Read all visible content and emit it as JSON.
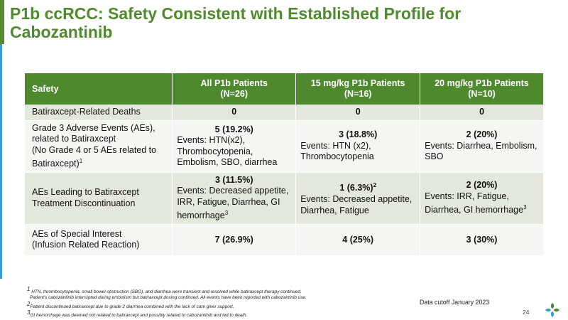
{
  "title": "P1b ccRCC: Safety Consistent with Established Profile for Cabozantinib",
  "colors": {
    "brand_green": "#4e8a2d",
    "accent_blue": "#3a9bd0",
    "row_shade": "#e3e8dc",
    "row_plain": "#f4f6f1"
  },
  "table": {
    "headers": {
      "col0": "Safety",
      "col1_line1": "All P1b Patients",
      "col1_line2": "(N=26)",
      "col2_line1": "15 mg/kg P1b Patients",
      "col2_line2": "(N=16)",
      "col3_line1": "20 mg/kg P1b Patients",
      "col3_line2": "(N=10)"
    },
    "rows": [
      {
        "label": "Batiraxcept-Related Deaths",
        "c1": "0",
        "c2": "0",
        "c3": "0"
      },
      {
        "label_l1": "Grade 3 Adverse Events (AEs),",
        "label_l2": "related to Batiraxcept",
        "label_l3": "(No Grade 4 or 5 AEs related to",
        "label_l4": "Batiraxcept)",
        "label_sup": "1",
        "c1_value": "5 (19.2%)",
        "c1_events": "Events: HTN(x2), Thrombocytopenia, Embolism, SBO, diarrhea",
        "c2_value": "3 (18.8%)",
        "c2_events": "Events: HTN (x2), Thrombocytopenia",
        "c3_value": "2 (20%)",
        "c3_events": "Events: Diarrhea, Embolism, SBO"
      },
      {
        "label_l1": "AEs Leading to Batiraxcept",
        "label_l2": "Treatment Discontinuation",
        "c1_value": "3 (11.5%)",
        "c1_events": "Events: Decreased appetite, IRR, Fatigue, Diarrhea, GI hemorrhage",
        "c1_sup": "3",
        "c2_value": "1 (6.3%)",
        "c2_value_sup": "2",
        "c2_events": "Events: Decreased appetite, Diarrhea, Fatigue",
        "c3_value": "2 (20%)",
        "c3_events": "Events: IRR, Fatigue, Diarrhea, GI hemorrhage",
        "c3_sup": "3"
      },
      {
        "label_l1": "AEs of Special Interest",
        "label_l2": "(Infusion Related Reaction)",
        "c1": "7 (26.9%)",
        "c2": "4 (25%)",
        "c3": "3 (30%)"
      }
    ]
  },
  "footnotes": {
    "f1_sup": "1",
    "f1_l1": "HTN, thrombocytopenia, small bowel obstruction (SBO), and diarrhea were transient and resolved while batiraxcept therapy continued.",
    "f1_l2": "Patient's cabozantinib interrupted during embolism but batiraxcept dosing continued. All events have been reported with cabozantinib use.",
    "f2_sup": "2",
    "f2": "Patient discontinued batiraxcept due to grade 2 diarrhea combined with the lack of care giver support.",
    "f3_sup": "3",
    "f3": "GI hemorrhage was deemed not related to batiraxcept and possibly related to cabozantinib and led to death."
  },
  "data_cutoff": "Data cutoff January 2023",
  "page_number": "24",
  "logo_icon": "company-logo-icon"
}
